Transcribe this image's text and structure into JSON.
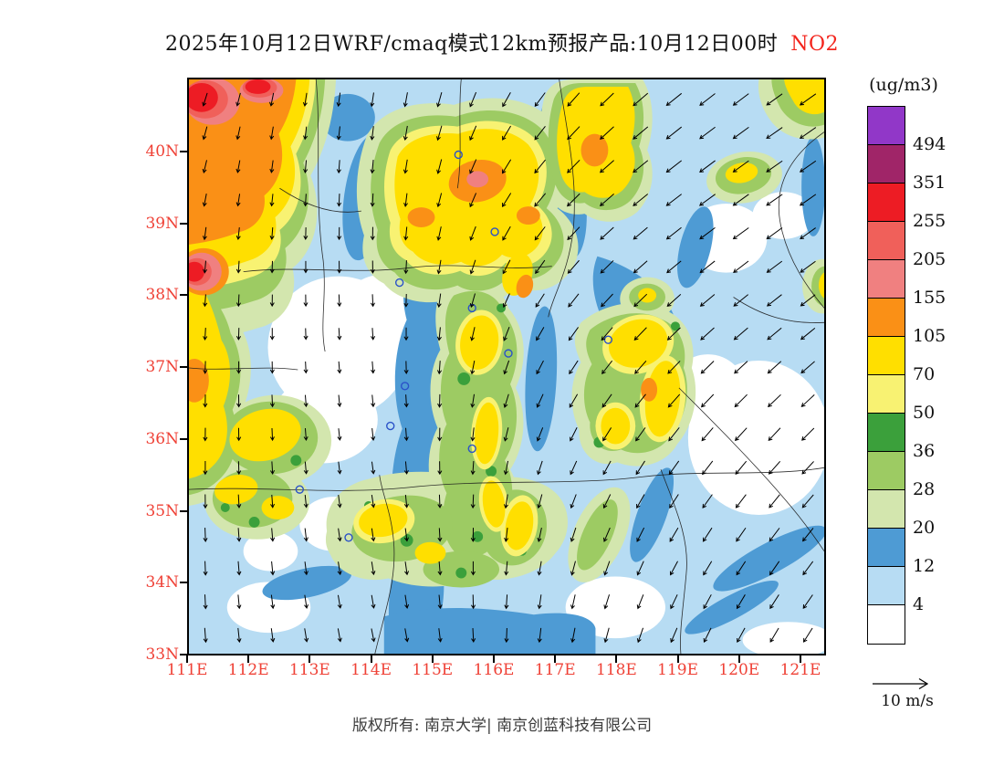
{
  "title": {
    "main": "2025年10月12日WRF/cmaq模式12km预报产品:10月12日00时",
    "species": "NO2"
  },
  "axes": {
    "lat_ticks": [
      "40N",
      "39N",
      "38N",
      "37N",
      "36N",
      "35N",
      "34N",
      "33N"
    ],
    "lon_ticks": [
      "111E",
      "112E",
      "113E",
      "114E",
      "115E",
      "116E",
      "117E",
      "118E",
      "119E",
      "120E",
      "121E"
    ],
    "tick_color": "#ef4136"
  },
  "legend": {
    "unit": "(ug/m3)",
    "labels": [
      "494",
      "351",
      "255",
      "205",
      "155",
      "105",
      "70",
      "50",
      "36",
      "28",
      "20",
      "12",
      "4"
    ],
    "cell_colors": [
      "#9137C8",
      "#A02568",
      "#ED1C24",
      "#F0605A",
      "#F08080",
      "#FA9016",
      "#FFDF00",
      "#F8F272",
      "#3BA03B",
      "#9DCB63",
      "#D3E6AE",
      "#4E9BD4",
      "#B7DCF3",
      "#FFFFFF"
    ]
  },
  "wind_legend": {
    "label": "10 m/s"
  },
  "footer": {
    "text": "版权所有: 南京大学| 南京创蓝科技有限公司"
  },
  "chart_data": {
    "type": "heatmap",
    "title": "2025年10月12日WRF/cmaq模式12km预报产品:10月12日00时 NO2",
    "variable": "NO2",
    "unit": "ug/m3",
    "grid_resolution": "12km",
    "lon_range_deg_e": [
      111,
      121.4
    ],
    "lat_range_deg_n": [
      33,
      41
    ],
    "contour_levels": [
      4,
      12,
      20,
      28,
      36,
      50,
      70,
      105,
      155,
      205,
      255,
      351,
      494
    ],
    "wind_reference": {
      "speed": 10,
      "unit": "m/s"
    },
    "wind_field": {
      "angles_deg_toward": [
        [
          200,
          195,
          190,
          188,
          192,
          202,
          215,
          224,
          230,
          232,
          234,
          235
        ],
        [
          196,
          191,
          186,
          186,
          191,
          204,
          218,
          227,
          231,
          233,
          235,
          235
        ],
        [
          191,
          188,
          183,
          181,
          189,
          204,
          219,
          228,
          232,
          234,
          235,
          235
        ],
        [
          186,
          183,
          180,
          178,
          185,
          199,
          214,
          224,
          229,
          232,
          233,
          234
        ],
        [
          184,
          181,
          178,
          175,
          181,
          194,
          209,
          219,
          225,
          228,
          230,
          231
        ],
        [
          182,
          179,
          176,
          174,
          178,
          190,
          204,
          214,
          220,
          224,
          226,
          228
        ],
        [
          181,
          178,
          175,
          172,
          176,
          185,
          198,
          208,
          214,
          218,
          221,
          224
        ],
        [
          179,
          176,
          174,
          171,
          174,
          182,
          192,
          202,
          209,
          214,
          217,
          220
        ],
        [
          178,
          175,
          172,
          170,
          172,
          180,
          188,
          196,
          204,
          209,
          213,
          216
        ],
        [
          176,
          173,
          170,
          168,
          170,
          177,
          185,
          192,
          199,
          205,
          209,
          212
        ]
      ],
      "speeds_rel": [
        [
          0.55,
          0.5,
          0.5,
          0.55,
          0.6,
          0.7,
          0.8,
          0.9,
          1,
          1,
          1,
          1
        ],
        [
          0.5,
          0.45,
          0.45,
          0.5,
          0.6,
          0.7,
          0.8,
          0.9,
          1,
          1,
          1,
          1
        ],
        [
          0.45,
          0.4,
          0.4,
          0.45,
          0.5,
          0.65,
          0.8,
          0.9,
          0.95,
          1,
          1,
          1
        ],
        [
          0.4,
          0.38,
          0.36,
          0.4,
          0.5,
          0.6,
          0.72,
          0.85,
          0.9,
          0.95,
          0.95,
          0.95
        ],
        [
          0.4,
          0.36,
          0.33,
          0.36,
          0.45,
          0.55,
          0.65,
          0.78,
          0.85,
          0.9,
          0.9,
          0.9
        ],
        [
          0.45,
          0.4,
          0.36,
          0.36,
          0.44,
          0.5,
          0.6,
          0.7,
          0.8,
          0.85,
          0.85,
          0.85
        ],
        [
          0.5,
          0.45,
          0.4,
          0.4,
          0.45,
          0.5,
          0.56,
          0.65,
          0.74,
          0.8,
          0.8,
          0.82
        ],
        [
          0.55,
          0.5,
          0.46,
          0.45,
          0.48,
          0.52,
          0.56,
          0.62,
          0.7,
          0.75,
          0.78,
          0.8
        ],
        [
          0.58,
          0.54,
          0.5,
          0.48,
          0.5,
          0.54,
          0.56,
          0.6,
          0.66,
          0.72,
          0.75,
          0.78
        ],
        [
          0.6,
          0.56,
          0.53,
          0.5,
          0.53,
          0.55,
          0.58,
          0.62,
          0.66,
          0.7,
          0.74,
          0.78
        ]
      ]
    }
  }
}
